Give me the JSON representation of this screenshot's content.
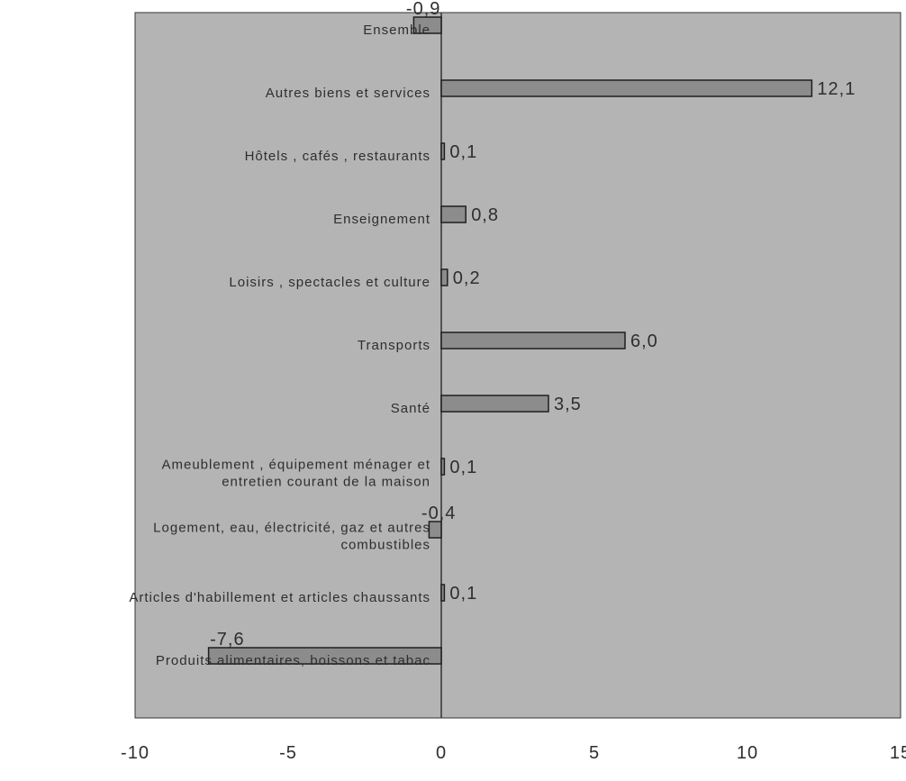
{
  "chart_data": {
    "type": "bar",
    "orientation": "horizontal",
    "title": "",
    "xlabel": "",
    "ylabel": "",
    "xlim": [
      -10,
      15
    ],
    "xticks": [
      -10,
      -5,
      0,
      5,
      10,
      15
    ],
    "xtick_labels": [
      "-10",
      "-5",
      "0",
      "5",
      "10",
      "15"
    ],
    "grid": false,
    "legend": "none",
    "categories": [
      "Ensemble",
      "Autres biens et services",
      "Hôtels , cafés , restaurants",
      "Enseignement",
      "Loisirs , spectacles et culture",
      "Transports",
      "Santé",
      "Ameublement , équipement ménager et entretien courant de la maison",
      "Logement, eau, électricité, gaz et autres combustibles",
      "Articles d'habillement et articles chaussants",
      "Produits alimentaires, boissons et tabac"
    ],
    "category_lines": [
      [
        "Ensemble"
      ],
      [
        "Autres biens et services"
      ],
      [
        "Hôtels , cafés , restaurants"
      ],
      [
        "Enseignement"
      ],
      [
        "Loisirs , spectacles et culture"
      ],
      [
        "Transports"
      ],
      [
        "Santé"
      ],
      [
        "Ameublement , équipement ménager et",
        "entretien courant de la maison"
      ],
      [
        "Logement, eau, électricité, gaz et autres",
        "combustibles"
      ],
      [
        "Articles d'habillement et articles chaussants"
      ],
      [
        "Produits alimentaires, boissons et tabac"
      ]
    ],
    "values": [
      -0.9,
      12.1,
      0.1,
      0.8,
      0.2,
      6.0,
      3.5,
      0.1,
      -0.4,
      0.1,
      -7.6
    ],
    "value_labels": [
      "-0,9",
      "12,1",
      "0,1",
      "0,8",
      "0,2",
      "6,0",
      "3,5",
      "0,1",
      "-0,4",
      "0,1",
      "-7,6"
    ],
    "colors": {
      "plot_background": "#b4b4b4",
      "bar_fill": "#8c8c8c",
      "bar_stroke": "#1e1e1e",
      "text": "#2e2e2e",
      "page_background": "#ffffff"
    }
  }
}
